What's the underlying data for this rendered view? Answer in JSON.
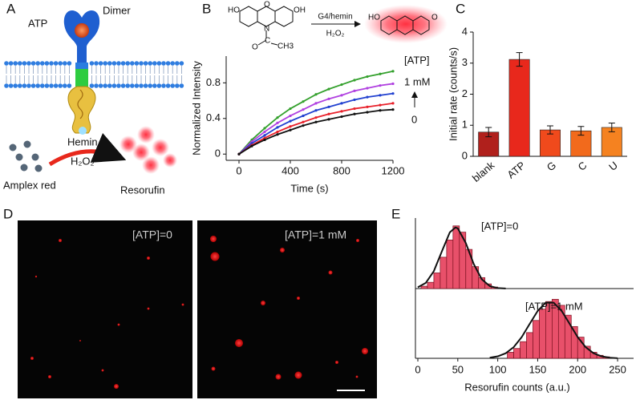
{
  "panel_labels": [
    "A",
    "B",
    "C",
    "D",
    "E"
  ],
  "diagram": {
    "atp": "ATP",
    "dimer": "Dimer",
    "hemin": "Hemin",
    "h2o2": "H₂O₂",
    "amplex_red": "Amplex red",
    "resorufin": "Resorufin"
  },
  "scheme": {
    "reagent_ho": "HO",
    "reagent_oh": "OH",
    "reagent_bridge": "O",
    "reagent_n": "N",
    "reagent_c": "C",
    "reagent_co": "O",
    "reagent_ch3": "CH3",
    "arrow_top": "G4/hemin",
    "arrow_bottom": "H₂O₂",
    "product_ho": "HO",
    "product_keto": "O"
  },
  "images": {
    "left_label": "[ATP]=0",
    "right_label": "[ATP]=1 mM"
  },
  "chart_data": [
    {
      "type": "line",
      "xlabel": "Time (s)",
      "ylabel": "Normalized Intensity",
      "x": [
        0,
        100,
        200,
        300,
        400,
        500,
        600,
        700,
        800,
        900,
        1000,
        1100,
        1200
      ],
      "series": [
        {
          "color": "#33a02c",
          "values": [
            0,
            0.16,
            0.29,
            0.41,
            0.51,
            0.59,
            0.67,
            0.73,
            0.78,
            0.83,
            0.87,
            0.9,
            0.93
          ]
        },
        {
          "color": "#b040e0",
          "values": [
            0,
            0.14,
            0.25,
            0.35,
            0.43,
            0.5,
            0.57,
            0.62,
            0.66,
            0.71,
            0.74,
            0.77,
            0.79
          ]
        },
        {
          "color": "#2040d0",
          "values": [
            0,
            0.12,
            0.21,
            0.3,
            0.37,
            0.43,
            0.49,
            0.53,
            0.57,
            0.61,
            0.64,
            0.66,
            0.68
          ]
        },
        {
          "color": "#e8202a",
          "values": [
            0,
            0.1,
            0.18,
            0.25,
            0.31,
            0.36,
            0.41,
            0.45,
            0.48,
            0.51,
            0.53,
            0.55,
            0.57
          ]
        },
        {
          "color": "#111111",
          "values": [
            0,
            0.09,
            0.16,
            0.22,
            0.27,
            0.32,
            0.36,
            0.39,
            0.42,
            0.45,
            0.47,
            0.49,
            0.5
          ]
        }
      ],
      "xlim": [
        -100,
        1200
      ],
      "xticks": [
        0,
        400,
        800,
        1200
      ],
      "ylim": [
        -0.07,
        1.1
      ],
      "yticks": [
        0,
        0.4,
        0.8
      ],
      "annotations": [
        "[ATP]",
        "1 mM",
        "0"
      ]
    },
    {
      "type": "bar",
      "ylabel": "Initial rate (counts/s)",
      "categories": [
        "blank",
        "ATP",
        "G",
        "C",
        "U"
      ],
      "values": [
        0.78,
        3.12,
        0.85,
        0.82,
        0.93
      ],
      "errors": [
        0.15,
        0.22,
        0.13,
        0.14,
        0.14
      ],
      "colors": [
        "#b0201c",
        "#e8281c",
        "#f04a1c",
        "#f26a1c",
        "#f58220"
      ],
      "ylim": [
        0,
        4
      ],
      "yticks": [
        0,
        1,
        2,
        3,
        4
      ]
    },
    {
      "type": "histogram",
      "annotation": "[ATP]=0",
      "color": "#e8506a",
      "bins": [
        4,
        12,
        20,
        28,
        36,
        44,
        52,
        60,
        68,
        76,
        84,
        92,
        100
      ],
      "values": [
        3,
        8,
        20,
        40,
        62,
        80,
        72,
        50,
        28,
        14,
        6,
        2
      ],
      "fit": {
        "x": [
          0,
          10,
          20,
          30,
          40,
          47,
          50,
          60,
          70,
          80,
          90,
          100,
          110
        ],
        "y": [
          1.7,
          7.3,
          22.2,
          47.3,
          71.7,
          78,
          76.8,
          58.2,
          31.2,
          11.9,
          3.2,
          0.6,
          0.1
        ]
      },
      "xlim": [
        0,
        265
      ],
      "ylim": [
        0,
        90
      ]
    },
    {
      "type": "histogram",
      "annotation": "[ATP]=1 mM",
      "color": "#e8506a",
      "xlabel": "Resorufin counts (a.u.)",
      "bins": [
        112,
        120,
        128,
        136,
        144,
        152,
        160,
        168,
        176,
        184,
        192,
        200,
        208,
        216,
        224,
        232,
        240
      ],
      "values": [
        8,
        13,
        22,
        34,
        50,
        65,
        75,
        78,
        70,
        57,
        42,
        28,
        16,
        8,
        4,
        2
      ],
      "fit": {
        "x": [
          90,
          100,
          110,
          120,
          130,
          140,
          150,
          160,
          170,
          180,
          190,
          200,
          210,
          220,
          230,
          240,
          250
        ],
        "y": [
          0.8,
          2.6,
          6.7,
          14.8,
          28.1,
          45.5,
          62.6,
          73.5,
          73.5,
          62.6,
          45.5,
          28.1,
          14.8,
          6.7,
          2.6,
          0.8,
          0.2
        ]
      },
      "xlim": [
        0,
        265
      ],
      "xticks": [
        0,
        50,
        100,
        150,
        200,
        250
      ],
      "ylim": [
        0,
        90
      ]
    }
  ]
}
